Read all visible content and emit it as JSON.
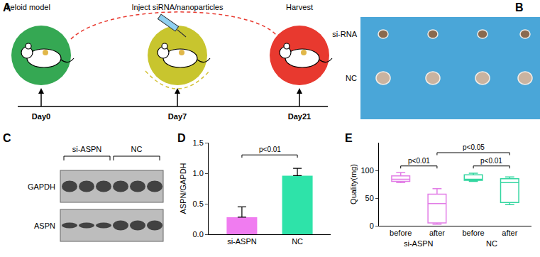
{
  "panel_labels": [
    "A",
    "B",
    "C",
    "D",
    "E"
  ],
  "timeline": {
    "steps": [
      {
        "label": "keloid model",
        "day": "Day0"
      },
      {
        "label": "Inject siRNA/nanoparticles",
        "day": "Day7"
      },
      {
        "label": "Harvest",
        "day": "Day21"
      }
    ]
  },
  "photo": {
    "rows": [
      "si-RNA",
      "NC"
    ]
  },
  "blot": {
    "groups": [
      "si-ASPN",
      "NC"
    ],
    "rows": [
      "GAPDH",
      "ASPN"
    ]
  },
  "chart_data": [
    {
      "type": "bar",
      "categories": [
        "si-ASPN",
        "NC"
      ],
      "values": [
        0.28,
        0.96
      ],
      "error": [
        0.17,
        0.12
      ],
      "colors": [
        "#f07cf0",
        "#2ee3a9"
      ],
      "y_label": "ASPN/GAPDH",
      "ylim": [
        0,
        1.5
      ],
      "yticks": [
        {
          "value": 0,
          "label": "0.0"
        },
        0.5,
        {
          "value": 1,
          "label": "1.0"
        },
        1.5
      ],
      "annotations": [
        {
          "text": "p<0.01",
          "from": 0,
          "to": 1,
          "y": 1.3
        }
      ]
    },
    {
      "type": "box",
      "categories": [
        "before",
        "after",
        "before",
        "after"
      ],
      "y_label": "Quality(mg)",
      "ylim": [
        0,
        150
      ],
      "yticks": [
        0,
        50,
        100
      ],
      "series": [
        {
          "name": "si-ASPN",
          "color": "#e27de6",
          "boxes": [
            {
              "min": 78,
              "q1": 80,
              "median": 84,
              "q3": 90,
              "max": 96
            },
            {
              "min": 3,
              "q1": 5,
              "median": 40,
              "q3": 57,
              "max": 67
            }
          ]
        },
        {
          "name": "NC",
          "color": "#33d6a0",
          "boxes": [
            {
              "min": 80,
              "q1": 82,
              "median": 84,
              "q3": 92,
              "max": 95
            },
            {
              "min": 38,
              "q1": 42,
              "median": 78,
              "q3": 85,
              "max": 88
            }
          ]
        }
      ],
      "annotations": [
        {
          "text": "p<0.01",
          "from": 0,
          "to": 1,
          "y": 108
        },
        {
          "text": "p<0.01",
          "from": 2,
          "to": 3,
          "y": 108
        },
        {
          "text": "p<0.05",
          "from": 1,
          "to": 3,
          "y": 132
        }
      ]
    }
  ]
}
